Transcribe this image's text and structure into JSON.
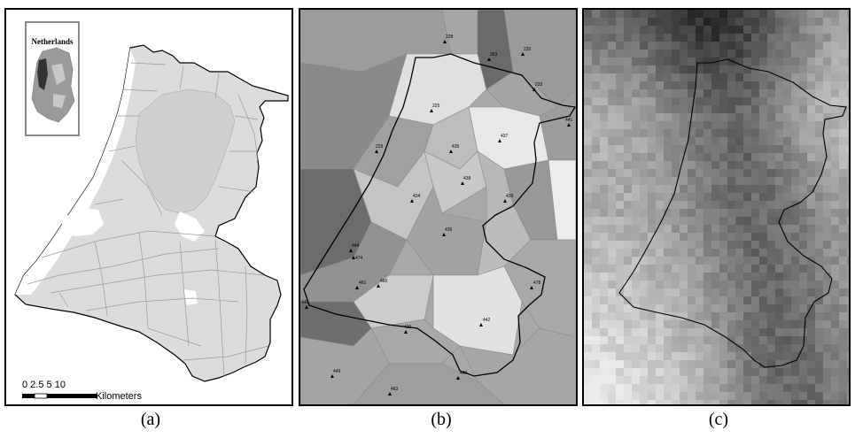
{
  "panels": {
    "a": {
      "caption": "(a)",
      "inset_title": "Netherlands",
      "scale_ticks": "0  2.5   5          10",
      "scale_unit": "Kilometers"
    },
    "b": {
      "caption": "(b)",
      "stations": [
        {
          "id": "228"
        },
        {
          "id": "230"
        },
        {
          "id": "263"
        },
        {
          "id": "233"
        },
        {
          "id": "225"
        },
        {
          "id": "441"
        },
        {
          "id": "437"
        },
        {
          "id": "229"
        },
        {
          "id": "435"
        },
        {
          "id": "438"
        },
        {
          "id": "434"
        },
        {
          "id": "439"
        },
        {
          "id": "436"
        },
        {
          "id": "444"
        },
        {
          "id": "474"
        },
        {
          "id": "461"
        },
        {
          "id": "460"
        },
        {
          "id": "478"
        },
        {
          "id": "440"
        },
        {
          "id": "426"
        },
        {
          "id": "442"
        },
        {
          "id": "449"
        },
        {
          "id": "443"
        },
        {
          "id": "463"
        }
      ]
    },
    "c": {
      "caption": "(c)"
    }
  },
  "colors": {
    "land": "#dcdcdc",
    "outline": "#000000",
    "inset_highlight": "#333333"
  }
}
